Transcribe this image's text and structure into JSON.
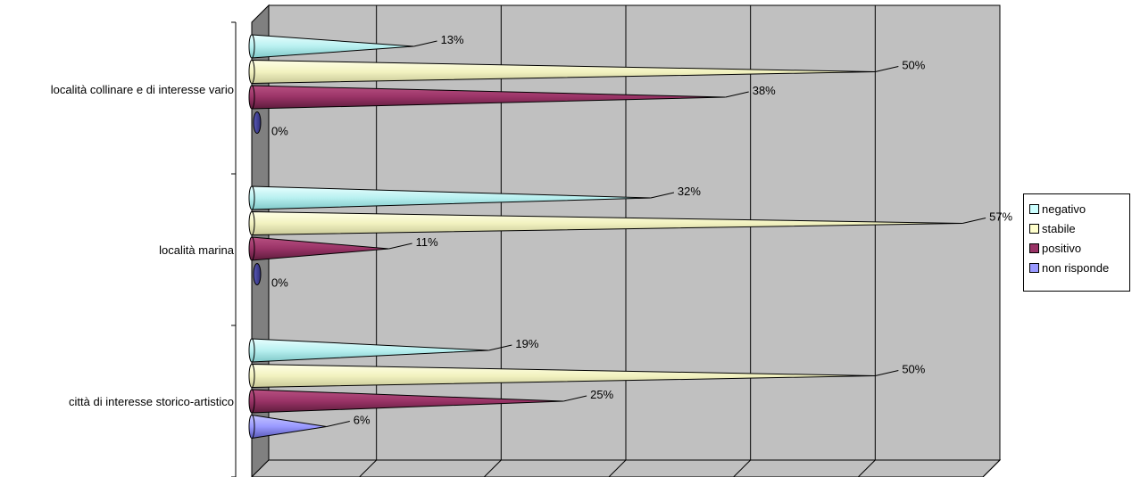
{
  "chart_data": {
    "type": "bar",
    "orientation": "horizontal",
    "style": "3d-cone",
    "categories": [
      "località collinare e di interesse vario",
      "località marina",
      "città di interesse storico-artistico"
    ],
    "series": [
      {
        "name": "negativo",
        "values": [
          13,
          32,
          19
        ],
        "labels": [
          "13%",
          "32%",
          "19%"
        ],
        "color": "#CCFFFF"
      },
      {
        "name": "stabile",
        "values": [
          50,
          57,
          50
        ],
        "labels": [
          "50%",
          "57%",
          "50%"
        ],
        "color": "#FFFFCC"
      },
      {
        "name": "positivo",
        "values": [
          38,
          11,
          25
        ],
        "labels": [
          "38%",
          "11%",
          "25%"
        ],
        "color": "#993366"
      },
      {
        "name": "non risponde",
        "values": [
          0,
          0,
          6
        ],
        "labels": [
          "0%",
          "0%",
          "6%"
        ],
        "color": "#9999FF"
      }
    ],
    "xlim": [
      0,
      60
    ],
    "grid": true,
    "legend_position": "right",
    "wall_color": "#C0C0C0",
    "side_wall_color": "#808080"
  }
}
